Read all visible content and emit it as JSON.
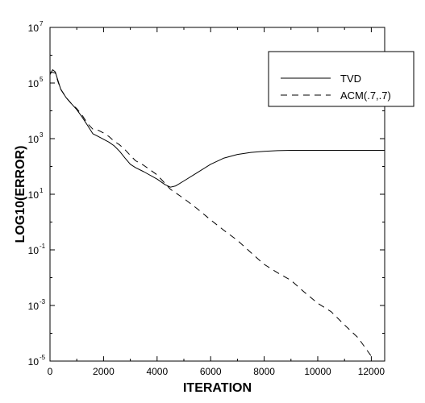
{
  "chart_data": {
    "type": "line",
    "title": "",
    "xlabel": "ITERATION",
    "ylabel": "LOG10(ERROR)",
    "y_scale": "log",
    "xlim": [
      0,
      12500
    ],
    "ylim": [
      1e-05,
      10000000
    ],
    "x_ticks": [
      {
        "value": 0,
        "label": "0"
      },
      {
        "value": 2000,
        "label": "2000"
      },
      {
        "value": 4000,
        "label": "4000"
      },
      {
        "value": 6000,
        "label": "6000"
      },
      {
        "value": 8000,
        "label": "8000"
      },
      {
        "value": 10000,
        "label": "10000"
      },
      {
        "value": 12000,
        "label": "12000"
      }
    ],
    "y_ticks": [
      {
        "value": 1e-05,
        "base": "10",
        "exp": "-5"
      },
      {
        "value": 0.001,
        "base": "10",
        "exp": "-3"
      },
      {
        "value": 0.1,
        "base": "10",
        "exp": "-1"
      },
      {
        "value": 10,
        "base": "10",
        "exp": "1"
      },
      {
        "value": 1000,
        "base": "10",
        "exp": "3"
      },
      {
        "value": 100000,
        "base": "10",
        "exp": "5"
      },
      {
        "value": 10000000,
        "base": "10",
        "exp": "7"
      }
    ],
    "grid": false,
    "legend_position": "top-right",
    "series": [
      {
        "name": "TVD",
        "style": "solid",
        "color": "#000000",
        "x": [
          0,
          100,
          200,
          300,
          400,
          600,
          800,
          1000,
          1200,
          1400,
          1600,
          1800,
          2000,
          2200,
          2400,
          2600,
          2800,
          3000,
          3200,
          3500,
          4000,
          4300,
          4500,
          4700,
          5000,
          5500,
          6000,
          6500,
          7000,
          7500,
          8000,
          8500,
          9000,
          10000,
          11000,
          12000,
          12500
        ],
        "y": [
          200000,
          300000,
          250000,
          120000,
          60000,
          30000,
          18000,
          11000,
          6000,
          3000,
          1500,
          1200,
          950,
          750,
          550,
          350,
          200,
          120,
          90,
          65,
          35,
          22,
          18,
          20,
          30,
          60,
          120,
          200,
          270,
          320,
          350,
          370,
          380,
          380,
          380,
          380,
          380
        ]
      },
      {
        "name": "ACM(.7,.7)",
        "style": "dashed",
        "color": "#000000",
        "x": [
          0,
          200,
          300,
          400,
          600,
          800,
          1000,
          1200,
          1400,
          1600,
          1800,
          2000,
          2200,
          2400,
          2600,
          2800,
          3000,
          3200,
          3500,
          4000,
          4500,
          5000,
          5500,
          6000,
          6500,
          7000,
          7500,
          8000,
          8500,
          9000,
          9500,
          10000,
          10500,
          11000,
          11500,
          12000
        ],
        "y": [
          250000,
          230000,
          110000,
          60000,
          30000,
          18000,
          12000,
          7000,
          3500,
          2200,
          2000,
          1600,
          1200,
          800,
          600,
          400,
          250,
          160,
          110,
          50,
          15,
          7,
          3,
          1.2,
          0.5,
          0.22,
          0.08,
          0.03,
          0.015,
          0.008,
          0.003,
          0.0012,
          0.0006,
          0.0002,
          7e-05,
          1.5e-05
        ]
      }
    ]
  }
}
